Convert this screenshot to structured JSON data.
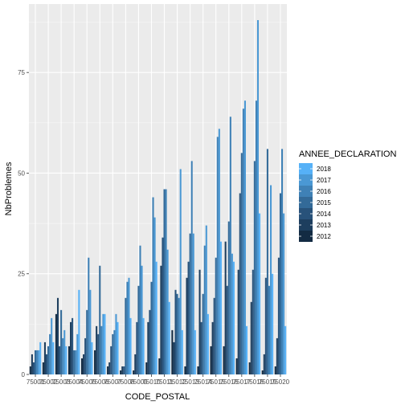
{
  "chart_data": {
    "type": "bar",
    "xlabel": "CODE_POSTAL",
    "ylabel": "NbProblemes",
    "ylim": [
      0,
      92
    ],
    "yticks": [
      0,
      25,
      50,
      75
    ],
    "grid": true,
    "legend": {
      "title": "ANNEE_DECLARATION",
      "position": "right"
    },
    "categories": [
      "75001",
      "75002",
      "75003",
      "75004",
      "75005",
      "75006",
      "75007",
      "75008",
      "75009",
      "75010",
      "75011",
      "75012",
      "75013",
      "75014",
      "75015",
      "75016",
      "75017",
      "75018",
      "75019",
      "75020"
    ],
    "tick_labels": [
      "75001",
      "75002",
      "75003",
      "75004",
      "75005",
      "75006",
      "75007",
      "75008",
      "75009",
      "75010",
      "75011",
      "75012",
      "75013",
      "75014",
      "75015",
      "75016",
      "75017",
      "75018",
      "75019",
      "75020"
    ],
    "colors": {
      "2012": "#132B43",
      "2013": "#1D3E5E",
      "2014": "#28527A",
      "2015": "#336A98",
      "2016": "#3F81B6",
      "2017": "#4A98D4",
      "2018": "#56B1F7"
    },
    "series": [
      {
        "name": "2012",
        "values": [
          2,
          3,
          15,
          7,
          4,
          6,
          2,
          1,
          1,
          3,
          4,
          11,
          2,
          2,
          7,
          7,
          4,
          3,
          1,
          2
        ]
      },
      {
        "name": "2013",
        "values": [
          5,
          8,
          19,
          13,
          5,
          12,
          3,
          2,
          5,
          13,
          27,
          8,
          24,
          26,
          13,
          33,
          26,
          18,
          5,
          9
        ]
      },
      {
        "name": "2014",
        "values": [
          3,
          5,
          7,
          14,
          9,
          10,
          7,
          2,
          13,
          16,
          34,
          21,
          28,
          13,
          19,
          22,
          45,
          26,
          24,
          29
        ]
      },
      {
        "name": "2015",
        "values": [
          6,
          7,
          16,
          6,
          16,
          27,
          10,
          19,
          22,
          23,
          46,
          20,
          35,
          20,
          29,
          38,
          55,
          53,
          56,
          45
        ]
      },
      {
        "name": "2016",
        "values": [
          6,
          10,
          9,
          6,
          29,
          12,
          11,
          23,
          32,
          44,
          46,
          19,
          53,
          32,
          59,
          64,
          66,
          68,
          22,
          56
        ]
      },
      {
        "name": "2017",
        "values": [
          6,
          14,
          11,
          10,
          21,
          15,
          15,
          24,
          27,
          39,
          31,
          51,
          35,
          37,
          61,
          30,
          68,
          88,
          47,
          40
        ]
      },
      {
        "name": "2018",
        "values": [
          8,
          8,
          7,
          21,
          8,
          15,
          13,
          14,
          14,
          28,
          18,
          11,
          11,
          15,
          33,
          28,
          12,
          40,
          25,
          12
        ]
      }
    ]
  }
}
